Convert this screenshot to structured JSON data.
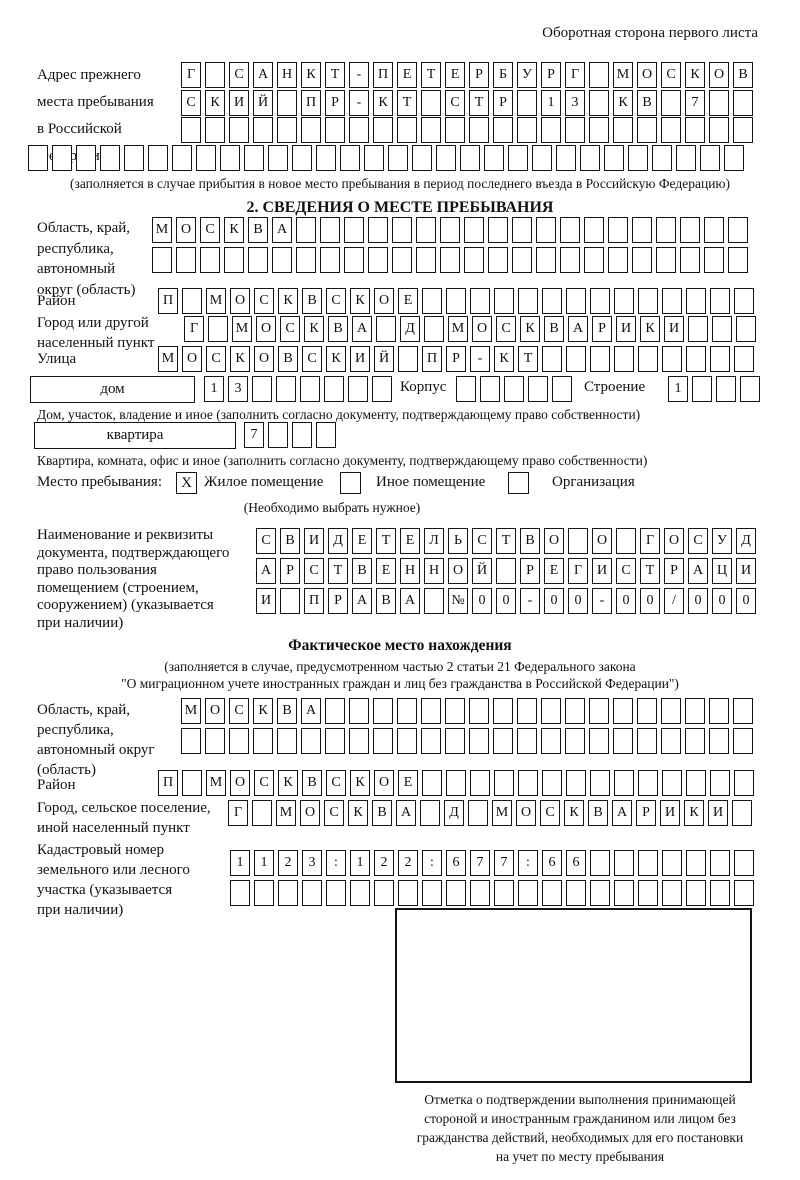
{
  "page": {
    "header_note": "Оборотная сторона первого листа"
  },
  "prev_address": {
    "label": "Адрес прежнего\nместа пребывания\nв Российской\nФедерации",
    "row1": {
      "chars": "Г САНКТ-ПЕТЕРБУРГ МОСКОВ",
      "total": 24
    },
    "row2": {
      "chars": "СКИЙ ПР-КТ СТР 13 КВ 7",
      "total": 24
    },
    "row3": {
      "chars": "",
      "total": 24
    },
    "row4": {
      "chars": "",
      "total": 30
    },
    "note": "(заполняется в случае прибытия в новое место пребывания в период последнего въезда в Российскую Федерацию)"
  },
  "section2": {
    "title": "2. СВЕДЕНИЯ О МЕСТЕ ПРЕБЫВАНИЯ",
    "region": {
      "label": "Область, край,\nреспублика,\nавтономный\nокруг (область)",
      "row1": {
        "chars": "МОСКВА",
        "total": 25
      },
      "row2": {
        "chars": "",
        "total": 25
      }
    },
    "district": {
      "label": "Район",
      "row": {
        "chars": "П МОСКВСКОЕ",
        "total": 25
      }
    },
    "city": {
      "label": "Город или другой\nнаселенный пункт",
      "row": {
        "chars": "Г МОСКВА Д МОСКВАРИКИ",
        "total": 24
      }
    },
    "street": {
      "label": "Улица",
      "row": {
        "chars": "МОСКОВСКИЙ ПР-КТ",
        "total": 25
      }
    },
    "house": {
      "box_label": "дом",
      "row": {
        "chars": "13",
        "total": 8
      },
      "korpus_label": "Корпус",
      "korpus_row": {
        "chars": "",
        "total": 5
      },
      "stroenie_label": "Строение",
      "stroenie_row": {
        "chars": "1",
        "total": 4
      },
      "note": "Дом, участок, владение и иное (заполнить согласно документу, подтверждающему право собственности)"
    },
    "apartment": {
      "box_label": "квартира",
      "row": {
        "chars": "7",
        "total": 4
      },
      "note": "Квартира, комната, офис и иное (заполнить согласно документу, подтверждающему право собственности)"
    },
    "stay_type": {
      "label": "Место пребывания:",
      "checked": "X",
      "options": [
        "Жилое помещение",
        "Иное помещение",
        "Организация"
      ],
      "note": "(Необходимо выбрать нужное)"
    },
    "document": {
      "label": "Наименование и реквизиты\nдокумента, подтверждающего\nправо пользования\nпомещением (строением,\nсооружением) (указывается\nпри наличии)",
      "row1": {
        "chars": "СВИДЕТЕЛЬСТВО О ГОСУД",
        "total": 21
      },
      "row2": {
        "chars": "АРСТВЕННОЙ РЕГИСТРАЦИ",
        "total": 21
      },
      "row3": {
        "chars": "И ПРАВА №00-00-00/000",
        "total": 21
      }
    }
  },
  "actual_location": {
    "title": "Фактическое место нахождения",
    "note1": "(заполняется в случае, предусмотренном частью 2 статьи 21 Федерального закона",
    "note2": "\"О миграционном учете иностранных граждан и лиц без гражданства в Российской Федерации\")",
    "region": {
      "label": "Область, край,\nреспублика,\nавтономный округ\n(область)",
      "row1": {
        "chars": "МОСКВА",
        "total": 24
      },
      "row2": {
        "chars": "",
        "total": 24
      }
    },
    "district": {
      "label": "Район",
      "row": {
        "chars": "П МОСКВСКОЕ",
        "total": 25
      }
    },
    "city": {
      "label": "Город, сельское поселение,\nиной населенный пункт",
      "row": {
        "chars": "Г МОСКВА Д МОСКВАРИКИ",
        "total": 22
      }
    },
    "cadastral": {
      "label": "Кадастровый номер\nземельного или лесного\nучастка (указывается\nпри наличии)",
      "row1": {
        "chars": "1123:122:677:66",
        "total": 22
      },
      "row2": {
        "chars": "",
        "total": 22
      }
    },
    "stamp_note": "Отметка о подтверждении выполнения принимающей\nстороной и иностранным гражданином или лицом без\nгражданства действий, необходимых для его постановки\nна учет по месту пребывания"
  }
}
